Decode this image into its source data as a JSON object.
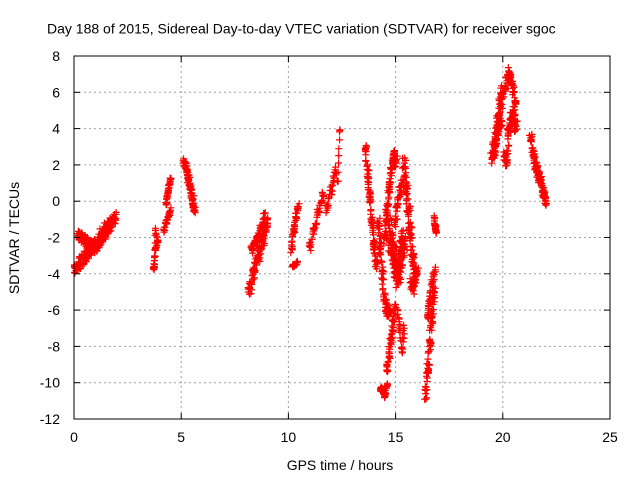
{
  "chart_data": {
    "type": "scatter",
    "title": "Day 188 of 2015, Sidereal Day-to-day VTEC variation (SDTVAR) for receiver sgoc",
    "xlabel": "GPS time / hours",
    "ylabel": "SDTVAR / TECUs",
    "xlim": [
      0,
      25
    ],
    "ylim": [
      -12,
      8
    ],
    "x_ticks": [
      0,
      5,
      10,
      15,
      20,
      25
    ],
    "y_ticks": [
      -12,
      -10,
      -8,
      -6,
      -4,
      -2,
      0,
      2,
      4,
      6,
      8
    ],
    "grid": true,
    "marker": "+",
    "color": "#ff0000",
    "series": [
      {
        "name": "SDTVAR",
        "clusters": [
          {
            "x": [
              0.1,
              0.3,
              0.5,
              0.7,
              0.9,
              1.1,
              1.3,
              1.5,
              1.7,
              1.9
            ],
            "y": [
              -3.7,
              -3.4,
              -3.1,
              -2.8,
              -2.5,
              -2.2,
              -1.9,
              -1.6,
              -1.3,
              -1.0
            ],
            "jitter": 0.5,
            "copies": 4
          },
          {
            "x": [
              0.2,
              0.4,
              0.6,
              0.8,
              1.0,
              1.2,
              1.4,
              1.6,
              1.8
            ],
            "y": [
              -1.9,
              -2.0,
              -2.2,
              -2.4,
              -2.6,
              -2.2,
              -1.8,
              -1.4,
              -1.2
            ],
            "jitter": 0.4,
            "copies": 3
          },
          {
            "x": [
              3.7,
              3.8,
              3.9,
              3.8,
              3.75
            ],
            "y": [
              -3.7,
              -2.6,
              -2.2,
              -1.6,
              -3.6
            ],
            "jitter": 0.15,
            "copies": 1
          },
          {
            "x": [
              4.2,
              4.3,
              4.4,
              4.5
            ],
            "y": [
              -1.6,
              -1.2,
              -0.9,
              -0.5
            ],
            "jitter": 0.2,
            "copies": 1
          },
          {
            "x": [
              4.3,
              4.35,
              4.4,
              4.45,
              4.5
            ],
            "y": [
              -0.2,
              0.3,
              0.6,
              0.9,
              1.2
            ],
            "jitter": 0.2,
            "copies": 1
          },
          {
            "x": [
              5.15,
              5.25,
              5.35,
              5.45,
              5.55,
              5.6
            ],
            "y": [
              2.2,
              1.7,
              1.2,
              0.6,
              0.1,
              -0.5
            ],
            "jitter": 0.35,
            "copies": 3
          },
          {
            "x": [
              8.2,
              8.4,
              8.6,
              8.8,
              9.0
            ],
            "y": [
              -4.8,
              -3.9,
              -3.0,
              -2.1,
              -1.2
            ],
            "jitter": 0.45,
            "copies": 4
          },
          {
            "x": [
              8.3,
              8.5,
              8.7,
              8.9
            ],
            "y": [
              -2.6,
              -2.2,
              -1.6,
              -0.9
            ],
            "jitter": 0.35,
            "copies": 3
          },
          {
            "x": [
              10.2,
              10.3,
              10.4
            ],
            "y": [
              -3.6,
              -3.5,
              -3.4
            ],
            "jitter": 0.15,
            "copies": 1
          },
          {
            "x": [
              10.15,
              10.25,
              10.35,
              10.45
            ],
            "y": [
              -2.6,
              -1.6,
              -0.9,
              -0.3
            ],
            "jitter": 0.3,
            "copies": 2
          },
          {
            "x": [
              11.0,
              11.2,
              11.4,
              11.6
            ],
            "y": [
              -2.5,
              -1.5,
              -0.6,
              0.3
            ],
            "jitter": 0.3,
            "copies": 2
          },
          {
            "x": [
              11.8,
              12.0,
              12.2
            ],
            "y": [
              -0.5,
              0.6,
              1.6
            ],
            "jitter": 0.35,
            "copies": 2
          },
          {
            "x": [
              12.3,
              12.4
            ],
            "y": [
              1.1,
              3.9
            ],
            "jitter": 0.15,
            "copies": 1
          },
          {
            "x": [
              13.6,
              13.7,
              13.8,
              13.9,
              14.0,
              14.1
            ],
            "y": [
              2.9,
              1.5,
              0.2,
              -1.2,
              -2.4,
              -3.5
            ],
            "jitter": 0.35,
            "copies": 3
          },
          {
            "x": [
              14.2,
              14.3,
              14.4,
              14.5,
              14.6,
              14.7
            ],
            "y": [
              -1.2,
              -2.6,
              -4.0,
              -5.4,
              -6.0,
              -6.2
            ],
            "jitter": 0.45,
            "copies": 3
          },
          {
            "x": [
              14.3,
              14.4,
              14.5,
              14.6
            ],
            "y": [
              -10.3,
              -10.5,
              -10.7,
              -10.2
            ],
            "jitter": 0.2,
            "copies": 2
          },
          {
            "x": [
              14.5,
              14.6,
              14.7,
              14.8,
              14.9,
              15.0
            ],
            "y": [
              -2.0,
              -0.5,
              0.8,
              1.8,
              2.6,
              2.2
            ],
            "jitter": 0.45,
            "copies": 3
          },
          {
            "x": [
              14.6,
              14.7,
              14.8,
              14.9,
              15.0
            ],
            "y": [
              -9.3,
              -8.4,
              -7.5,
              -6.6,
              -5.7
            ],
            "jitter": 0.35,
            "copies": 2
          },
          {
            "x": [
              14.7,
              14.8,
              14.9,
              15.0,
              15.1,
              15.2,
              15.3,
              15.4
            ],
            "y": [
              -1.5,
              -2.3,
              -3.0,
              -3.6,
              -4.2,
              -3.4,
              -2.6,
              -2.2
            ],
            "jitter": 0.8,
            "copies": 5
          },
          {
            "x": [
              15.0,
              15.1,
              15.2,
              15.3
            ],
            "y": [
              -1.0,
              -0.2,
              0.6,
              0.9
            ],
            "jitter": 0.5,
            "copies": 2
          },
          {
            "x": [
              15.4,
              15.5,
              15.6,
              15.7,
              15.8,
              15.9
            ],
            "y": [
              2.1,
              0.8,
              -0.6,
              -1.8,
              -3.0,
              -4.0
            ],
            "jitter": 0.5,
            "copies": 3
          },
          {
            "x": [
              15.7,
              15.8,
              15.9,
              16.0
            ],
            "y": [
              -4.5,
              -4.8,
              -4.2,
              -3.8
            ],
            "jitter": 0.4,
            "copies": 2
          },
          {
            "x": [
              15.1,
              15.2,
              15.3,
              15.4
            ],
            "y": [
              -6.0,
              -7.0,
              -8.3,
              -7.0
            ],
            "jitter": 0.3,
            "copies": 1
          },
          {
            "x": [
              16.4,
              16.5,
              16.6,
              16.7,
              16.8
            ],
            "y": [
              -10.6,
              -9.2,
              -7.8,
              -6.4,
              -5.0
            ],
            "jitter": 0.45,
            "copies": 3
          },
          {
            "x": [
              16.5,
              16.6,
              16.7,
              16.8
            ],
            "y": [
              -6.4,
              -5.5,
              -4.6,
              -3.9
            ],
            "jitter": 0.35,
            "copies": 2
          },
          {
            "x": [
              16.8,
              16.85,
              16.9
            ],
            "y": [
              -0.9,
              -1.4,
              -1.7
            ],
            "jitter": 0.2,
            "copies": 1
          },
          {
            "x": [
              19.5,
              19.6,
              19.7,
              19.8,
              19.9,
              20.0
            ],
            "y": [
              2.4,
              3.1,
              3.8,
              4.6,
              5.4,
              6.0
            ],
            "jitter": 0.5,
            "copies": 3
          },
          {
            "x": [
              19.6,
              19.7,
              19.8,
              19.9
            ],
            "y": [
              2.6,
              3.2,
              4.0,
              4.4
            ],
            "jitter": 0.4,
            "copies": 2
          },
          {
            "x": [
              20.1,
              20.2,
              20.3,
              20.4,
              20.5,
              20.6
            ],
            "y": [
              6.2,
              6.8,
              7.1,
              6.6,
              6.0,
              5.4
            ],
            "jitter": 0.35,
            "copies": 2
          },
          {
            "x": [
              20.1,
              20.2,
              20.3,
              20.4,
              20.5,
              20.6
            ],
            "y": [
              2.5,
              2.3,
              4.0,
              4.6,
              5.0,
              4.2
            ],
            "jitter": 0.45,
            "copies": 3
          },
          {
            "x": [
              21.3,
              21.45,
              21.6,
              21.75,
              21.9,
              22.0
            ],
            "y": [
              3.5,
              2.5,
              1.9,
              1.2,
              0.6,
              0.0
            ],
            "jitter": 0.35,
            "copies": 3
          },
          {
            "x": [
              21.5,
              21.7,
              21.9
            ],
            "y": [
              1.9,
              1.2,
              0.3
            ],
            "jitter": 0.3,
            "copies": 2
          }
        ]
      }
    ]
  }
}
